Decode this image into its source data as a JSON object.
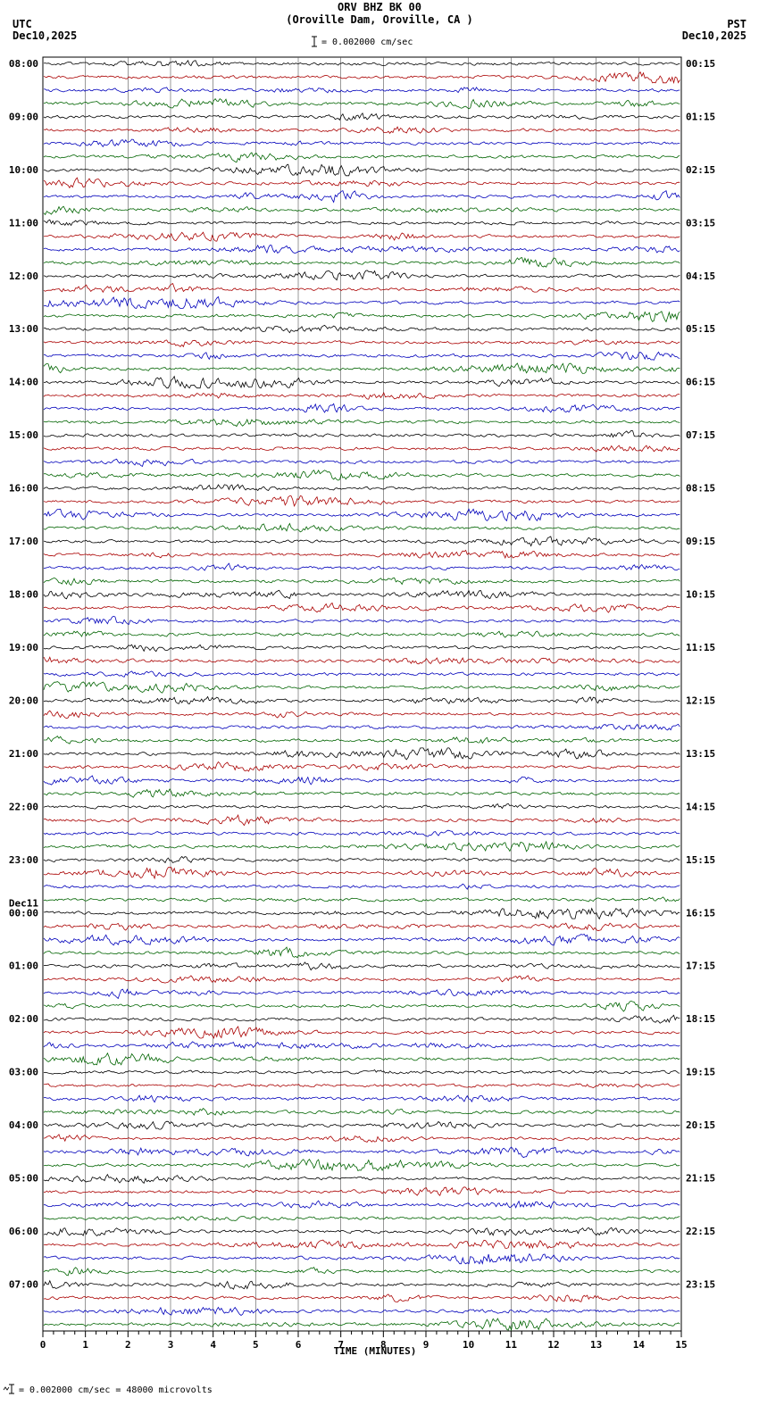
{
  "title": {
    "line1": "ORV BHZ BK 00",
    "line2": "(Oroville Dam, Oroville, CA )"
  },
  "header": {
    "left_tz": "UTC",
    "left_date": "Dec10,2025",
    "right_tz": "PST",
    "right_date": "Dec10,2025",
    "scale_text": "= 0.002000 cm/sec"
  },
  "footer": {
    "scale_text": "= 0.002000 cm/sec =   48000 microvolts"
  },
  "chart_data": {
    "type": "line",
    "subtype": "helicorder-seismogram",
    "station": "ORV BHZ BK 00",
    "location": "Oroville Dam, Oroville, CA",
    "minutes_per_row": 15,
    "rows": 96,
    "rows_per_hour": 4,
    "x_range": [
      0,
      15
    ],
    "xlabel": "TIME (MINUTES)",
    "x_ticks": [
      "0",
      "1",
      "2",
      "3",
      "4",
      "5",
      "6",
      "7",
      "8",
      "9",
      "10",
      "11",
      "12",
      "13",
      "14",
      "15"
    ],
    "trace_colors": [
      "#000000",
      "#aa0000",
      "#0000bb",
      "#006400"
    ],
    "utc_hour_labels": [
      "08:00",
      "09:00",
      "10:00",
      "11:00",
      "12:00",
      "13:00",
      "14:00",
      "15:00",
      "16:00",
      "17:00",
      "18:00",
      "19:00",
      "20:00",
      "21:00",
      "22:00",
      "23:00",
      "00:00",
      "01:00",
      "02:00",
      "03:00",
      "04:00",
      "05:00",
      "06:00",
      "07:00"
    ],
    "utc_date_break": {
      "hour_index": 16,
      "label": "Dec11"
    },
    "pst_hour_labels": [
      "00:15",
      "01:15",
      "02:15",
      "03:15",
      "04:15",
      "05:15",
      "06:15",
      "07:15",
      "08:15",
      "09:15",
      "10:15",
      "11:15",
      "12:15",
      "13:15",
      "14:15",
      "15:15",
      "16:15",
      "17:15",
      "18:15",
      "19:15",
      "20:15",
      "21:15",
      "22:15",
      "23:15"
    ],
    "amplitude_scale": "0.002000 cm/sec",
    "gain": "48000 microvolts",
    "signal": "continuous low-amplitude background seismic noise with small intermittent bursts on every 15-minute trace",
    "legend_position": "none",
    "grid": "vertical minute lines only"
  }
}
